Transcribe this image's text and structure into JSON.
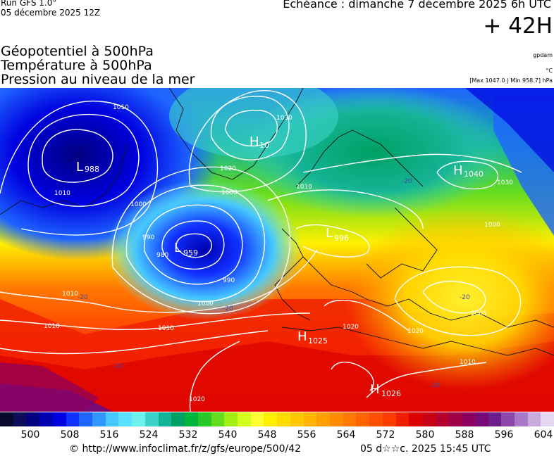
{
  "header": {
    "run_label": "Run GFS 1.0°",
    "run_date": "05 décembre 2025 12Z",
    "echeance": "Echéance : dimanche 7 décembre 2025 6h UTC",
    "leadtime": "+ 42H"
  },
  "titles": [
    "Géopotentiel à 500hPa",
    "Température à 500hPa",
    "Pression au niveau de la mer"
  ],
  "units": {
    "geopotential": "gpdam",
    "temperature": "°C",
    "pressure": "[Max 1047.0 | Min 958.7] hPa"
  },
  "pressure_centers": [
    {
      "type": "L",
      "value": "988"
    },
    {
      "type": "H",
      "value": "10"
    },
    {
      "type": "L",
      "value": "959"
    },
    {
      "type": "L",
      "value": "996"
    },
    {
      "type": "H",
      "value": "1040"
    },
    {
      "type": "H",
      "value": "1025"
    },
    {
      "type": "H",
      "value": "1026"
    }
  ],
  "isobar_labels": [
    "1010",
    "1030",
    "1020",
    "1000",
    "1010",
    "1010",
    "1000",
    "990",
    "980",
    "990",
    "1000",
    "1010",
    "1010",
    "1010",
    "1020",
    "1030",
    "1000",
    "1005",
    "1010",
    "1020",
    "1020"
  ],
  "temperature_labels": [
    "-20",
    "-20",
    "-20",
    "-20",
    "-20",
    "-20"
  ],
  "colorbar": {
    "colors": [
      "#0a0a30",
      "#0c0c5a",
      "#000080",
      "#0000b0",
      "#0000e0",
      "#1030ff",
      "#1e64ff",
      "#3296ff",
      "#46c8ff",
      "#5ae1ff",
      "#6ef0f0",
      "#3cd2c8",
      "#14b496",
      "#00a064",
      "#00b43c",
      "#28c828",
      "#64dc1e",
      "#a0f014",
      "#d2ff1e",
      "#ffff32",
      "#fff000",
      "#ffdc00",
      "#ffc800",
      "#ffb400",
      "#ffa000",
      "#ff8c00",
      "#ff7800",
      "#ff6400",
      "#ff5000",
      "#ff3c00",
      "#f01e00",
      "#dc0000",
      "#c80014",
      "#b4002d",
      "#a00046",
      "#8c005f",
      "#780a78",
      "#6e1e8c",
      "#8c46aa",
      "#aa78c8",
      "#c8aadc",
      "#e6d7f0"
    ],
    "ticks": [
      "500",
      "508",
      "516",
      "524",
      "532",
      "540",
      "548",
      "556",
      "564",
      "572",
      "580",
      "588",
      "596",
      "604"
    ]
  },
  "footer": {
    "source": "© http://www.infoclimat.fr/z/gfs/europe/500/42",
    "timestamp": "05 d☆☆c. 2025 15:45 UTC"
  }
}
